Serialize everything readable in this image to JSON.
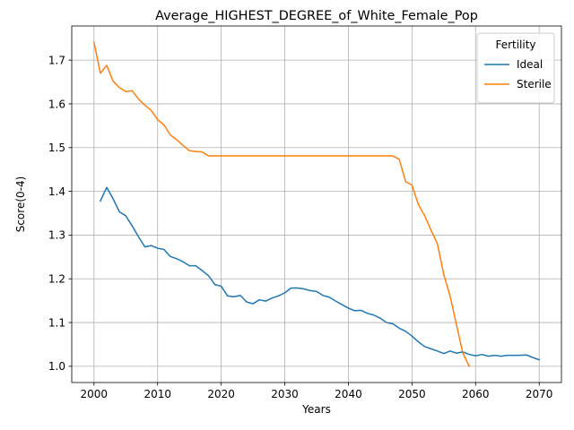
{
  "chart_data": {
    "type": "line",
    "title": "Average_HIGHEST_DEGREE_of_White_Female_Pop",
    "xlabel": "Years",
    "ylabel": "Score(0-4)",
    "xlim": [
      1996.5,
      2073.5
    ],
    "ylim": [
      0.9629,
      1.7781
    ],
    "xticks": [
      2000,
      2010,
      2020,
      2030,
      2040,
      2050,
      2060,
      2070
    ],
    "yticks": [
      1.0,
      1.1,
      1.2,
      1.3,
      1.4,
      1.5,
      1.6,
      1.7
    ],
    "ytick_labels": [
      "1.0",
      "1.1",
      "1.2",
      "1.3",
      "1.4",
      "1.5",
      "1.6",
      "1.7"
    ],
    "grid": true,
    "legend": {
      "title": "Fertility",
      "placement": "top-right"
    },
    "series": [
      {
        "name": "Ideal",
        "color": "#1f77b4",
        "x": [
          2001,
          2002,
          2003,
          2004,
          2005,
          2006,
          2007,
          2008,
          2009,
          2010,
          2011,
          2012,
          2013,
          2014,
          2015,
          2016,
          2017,
          2018,
          2019,
          2020,
          2021,
          2022,
          2023,
          2024,
          2025,
          2026,
          2027,
          2028,
          2029,
          2030,
          2031,
          2032,
          2033,
          2034,
          2035,
          2036,
          2037,
          2038,
          2039,
          2040,
          2041,
          2042,
          2043,
          2044,
          2045,
          2046,
          2047,
          2048,
          2049,
          2050,
          2051,
          2052,
          2053,
          2054,
          2055,
          2056,
          2057,
          2058,
          2059,
          2060,
          2061,
          2062,
          2063,
          2064,
          2065,
          2066,
          2067,
          2068,
          2069,
          2070
        ],
        "y": [
          1.378,
          1.409,
          1.383,
          1.353,
          1.344,
          1.321,
          1.296,
          1.273,
          1.276,
          1.27,
          1.267,
          1.251,
          1.246,
          1.239,
          1.23,
          1.23,
          1.219,
          1.207,
          1.187,
          1.183,
          1.161,
          1.159,
          1.162,
          1.147,
          1.143,
          1.152,
          1.149,
          1.156,
          1.161,
          1.168,
          1.179,
          1.179,
          1.177,
          1.173,
          1.171,
          1.162,
          1.158,
          1.149,
          1.141,
          1.133,
          1.127,
          1.128,
          1.121,
          1.117,
          1.11,
          1.1,
          1.097,
          1.087,
          1.08,
          1.069,
          1.056,
          1.045,
          1.04,
          1.035,
          1.029,
          1.035,
          1.03,
          1.033,
          1.027,
          1.024,
          1.027,
          1.023,
          1.025,
          1.023,
          1.025,
          1.025,
          1.025,
          1.026,
          1.02,
          1.015
        ]
      },
      {
        "name": "Sterile",
        "color": "#ff7f0e",
        "x": [
          2000,
          2001,
          2002,
          2003,
          2004,
          2005,
          2006,
          2007,
          2008,
          2009,
          2010,
          2011,
          2012,
          2013,
          2014,
          2015,
          2016,
          2017,
          2018,
          2019,
          2020,
          2021,
          2022,
          2023,
          2024,
          2025,
          2026,
          2027,
          2028,
          2029,
          2030,
          2031,
          2032,
          2033,
          2034,
          2035,
          2036,
          2037,
          2038,
          2039,
          2040,
          2041,
          2042,
          2043,
          2044,
          2045,
          2046,
          2047,
          2048,
          2049,
          2050,
          2051,
          2052,
          2053,
          2054,
          2055,
          2056,
          2057,
          2058,
          2059
        ],
        "y": [
          1.741,
          1.67,
          1.688,
          1.652,
          1.637,
          1.628,
          1.63,
          1.611,
          1.597,
          1.585,
          1.564,
          1.552,
          1.529,
          1.518,
          1.505,
          1.493,
          1.491,
          1.49,
          1.481,
          1.481,
          1.481,
          1.481,
          1.481,
          1.481,
          1.481,
          1.481,
          1.481,
          1.481,
          1.481,
          1.481,
          1.481,
          1.481,
          1.481,
          1.481,
          1.481,
          1.481,
          1.481,
          1.481,
          1.481,
          1.481,
          1.481,
          1.481,
          1.481,
          1.481,
          1.481,
          1.481,
          1.481,
          1.481,
          1.473,
          1.422,
          1.414,
          1.37,
          1.344,
          1.311,
          1.28,
          1.21,
          1.16,
          1.095,
          1.03,
          1.0
        ]
      }
    ]
  }
}
